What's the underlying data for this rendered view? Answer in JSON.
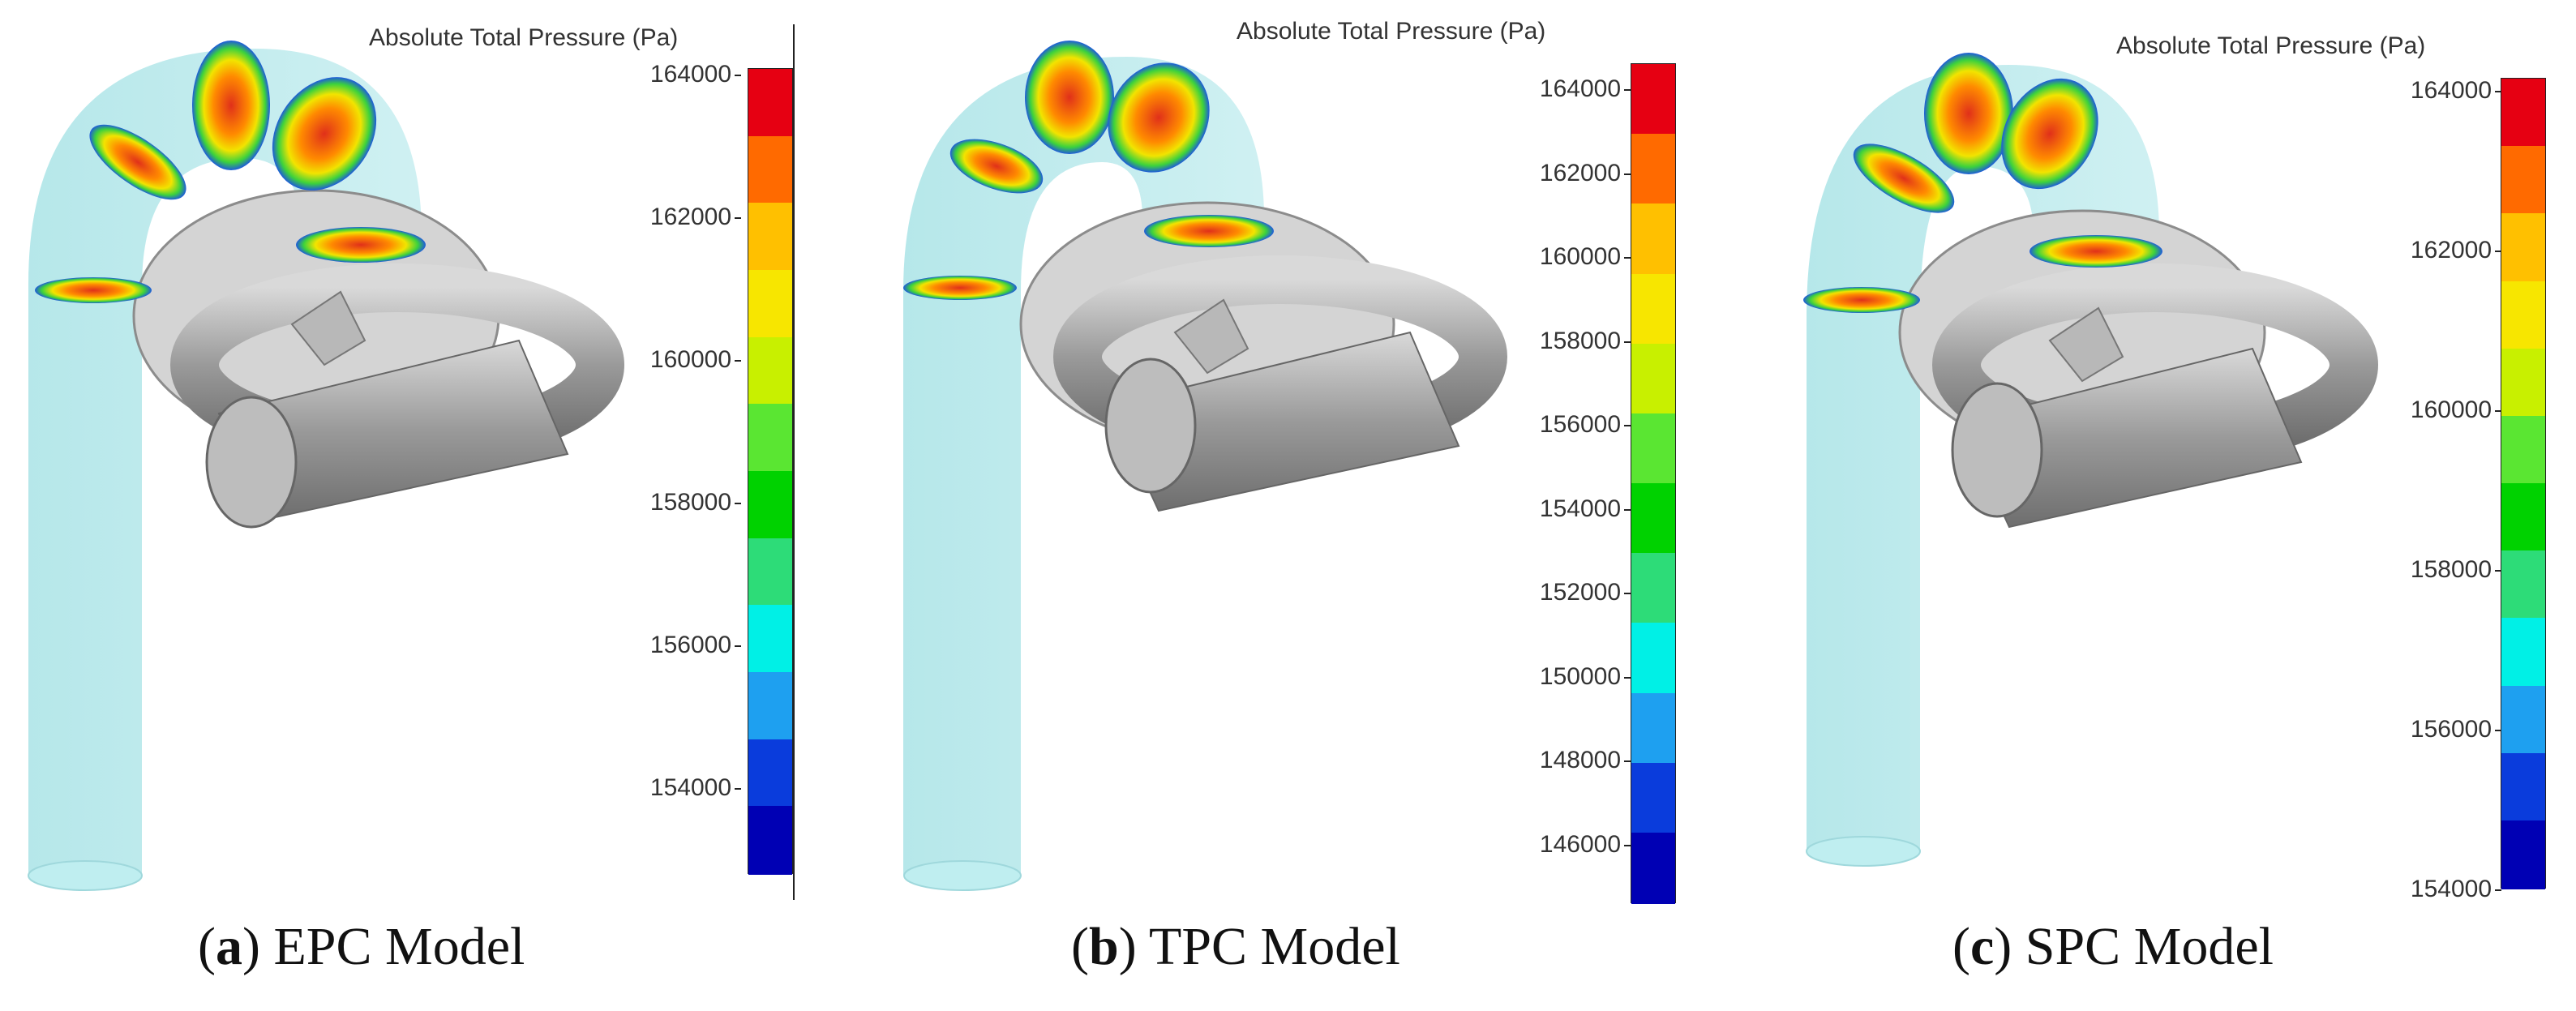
{
  "colorbar": {
    "title": "Absolute Total Pressure (Pa)",
    "colors": [
      "#e60012",
      "#ff6a00",
      "#ffc000",
      "#f7e600",
      "#c8f000",
      "#5ae632",
      "#00d200",
      "#2ddc78",
      "#00f0e6",
      "#1ea0f0",
      "#0a3cdc",
      "#0000b4"
    ]
  },
  "panels": [
    {
      "id": "a",
      "letter": "a",
      "label": "EPC Model",
      "ticks": [
        "164000",
        "162000",
        "160000",
        "158000",
        "156000",
        "154000"
      ]
    },
    {
      "id": "b",
      "letter": "b",
      "label": "TPC Model",
      "ticks": [
        "164000",
        "162000",
        "160000",
        "158000",
        "156000",
        "154000",
        "152000",
        "150000",
        "148000",
        "146000"
      ]
    },
    {
      "id": "c",
      "letter": "c",
      "label": "SPC Model",
      "ticks": [
        "164000",
        "162000",
        "160000",
        "158000",
        "156000",
        "154000"
      ]
    }
  ]
}
